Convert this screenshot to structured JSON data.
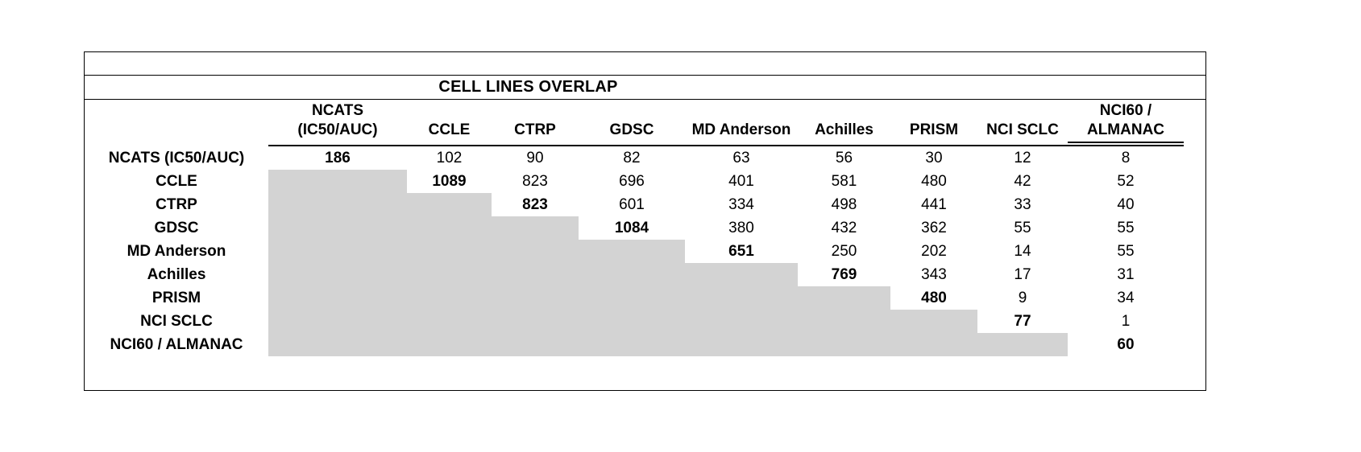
{
  "title": "CELL LINES OVERLAP",
  "chart_data": {
    "type": "table",
    "title": "CELL LINES OVERLAP",
    "description": "Upper-triangular matrix of cell line overlaps between datasets; diagonal values are bold dataset totals; lower triangle is shaded gray (empty).",
    "column_labels": [
      "NCATS (IC50/AUC)",
      "CCLE",
      "CTRP",
      "GDSC",
      "MD Anderson",
      "Achilles",
      "PRISM",
      "NCI SCLC",
      "NCI60 / ALMANAC"
    ],
    "column_headers_two_line": [
      [
        "NCATS",
        "(IC50/AUC)"
      ],
      [
        "",
        "CCLE"
      ],
      [
        "",
        "CTRP"
      ],
      [
        "",
        "GDSC"
      ],
      [
        "",
        "MD Anderson"
      ],
      [
        "",
        "Achilles"
      ],
      [
        "",
        "PRISM"
      ],
      [
        "",
        "NCI SCLC"
      ],
      [
        "NCI60 /",
        "ALMANAC"
      ]
    ],
    "row_labels": [
      "NCATS (IC50/AUC)",
      "CCLE",
      "CTRP",
      "GDSC",
      "MD Anderson",
      "Achilles",
      "PRISM",
      "NCI SCLC",
      "NCI60 / ALMANAC"
    ],
    "matrix": [
      [
        186,
        102,
        90,
        82,
        63,
        56,
        30,
        12,
        8
      ],
      [
        null,
        1089,
        823,
        696,
        401,
        581,
        480,
        42,
        52
      ],
      [
        null,
        null,
        823,
        601,
        334,
        498,
        441,
        33,
        40
      ],
      [
        null,
        null,
        null,
        1084,
        380,
        432,
        362,
        55,
        55
      ],
      [
        null,
        null,
        null,
        null,
        651,
        250,
        202,
        14,
        55
      ],
      [
        null,
        null,
        null,
        null,
        null,
        769,
        343,
        17,
        31
      ],
      [
        null,
        null,
        null,
        null,
        null,
        null,
        480,
        9,
        34
      ],
      [
        null,
        null,
        null,
        null,
        null,
        null,
        null,
        77,
        1
      ],
      [
        null,
        null,
        null,
        null,
        null,
        null,
        null,
        null,
        60
      ]
    ],
    "diagonal_values_bold": true,
    "shaded_lower_triangle_color": "#d3d3d3",
    "grid": "outer box, line above/below title, line under column headers (double under last column)"
  }
}
